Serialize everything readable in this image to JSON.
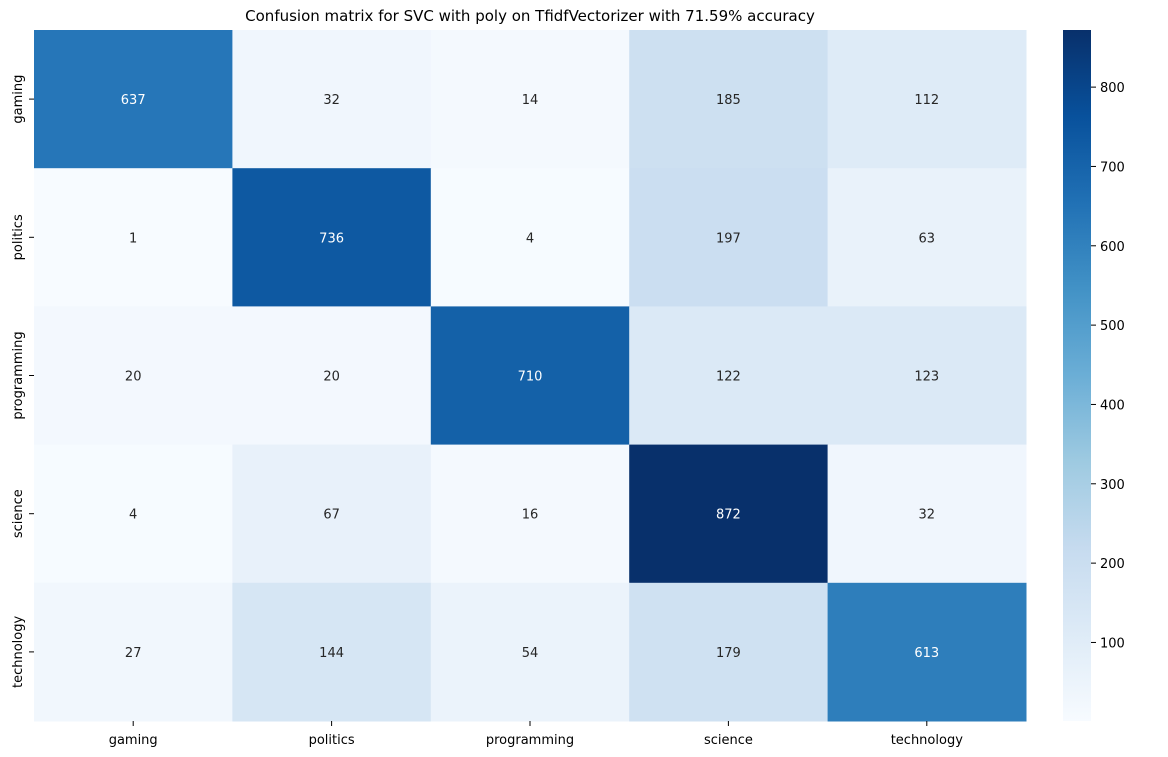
{
  "chart_data": {
    "type": "heatmap",
    "title": "Confusion matrix for SVC with poly on TfidfVectorizer with 71.59% accuracy",
    "xlabel": "",
    "ylabel": "",
    "x_categories": [
      "gaming",
      "politics",
      "programming",
      "science",
      "technology"
    ],
    "y_categories": [
      "gaming",
      "politics",
      "programming",
      "science",
      "technology"
    ],
    "values": [
      [
        637,
        32,
        14,
        185,
        112
      ],
      [
        1,
        736,
        4,
        197,
        63
      ],
      [
        20,
        20,
        710,
        122,
        123
      ],
      [
        4,
        67,
        16,
        872,
        32
      ],
      [
        27,
        144,
        54,
        179,
        613
      ]
    ],
    "colormap": "Blues",
    "colorbar": {
      "range": [
        1,
        872
      ],
      "ticks": [
        100,
        200,
        300,
        400,
        500,
        600,
        700,
        800
      ]
    },
    "annotations": true,
    "grid": false
  }
}
